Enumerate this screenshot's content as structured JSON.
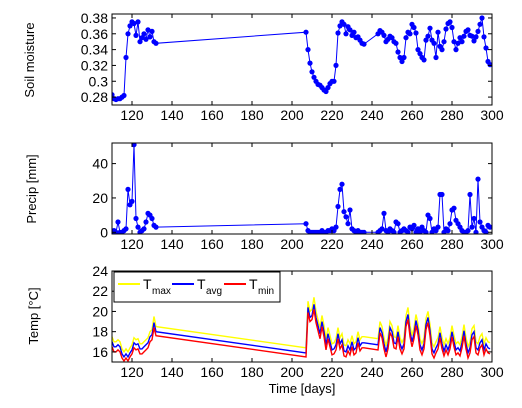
{
  "xlabel": "Time [days]",
  "chart_data": [
    {
      "type": "line",
      "ylabel": "Soil moisture",
      "xlim": [
        110,
        300
      ],
      "ylim": [
        0.27,
        0.385
      ],
      "xticks": [
        120,
        140,
        160,
        180,
        200,
        220,
        240,
        260,
        280,
        300
      ],
      "yticks": [
        0.28,
        0.3,
        0.32,
        0.34,
        0.36,
        0.38
      ],
      "ytick_labels": [
        "0.28",
        "0.3",
        "0.32",
        "0.34",
        "0.36",
        "0.38"
      ],
      "series": [
        {
          "color": "#0000ff",
          "markers": true,
          "x": [
            110,
            111,
            112,
            113,
            114,
            115,
            116,
            117,
            118,
            119,
            120,
            121,
            122,
            123,
            124,
            125,
            126,
            127,
            128,
            129,
            130,
            131,
            132,
            207,
            208,
            209,
            210,
            211,
            212,
            213,
            214,
            215,
            216,
            217,
            218,
            219,
            220,
            221,
            222,
            223,
            224,
            225,
            226,
            227,
            228,
            229,
            230,
            231,
            232,
            233,
            234,
            235,
            236,
            243,
            244,
            245,
            246,
            247,
            248,
            249,
            250,
            251,
            252,
            253,
            254,
            255,
            256,
            257,
            258,
            259,
            260,
            261,
            262,
            263,
            264,
            265,
            266,
            267,
            268,
            269,
            270,
            271,
            272,
            273,
            274,
            275,
            276,
            277,
            278,
            279,
            280,
            281,
            282,
            283,
            284,
            285,
            286,
            287,
            288,
            289,
            290,
            291,
            292,
            293,
            294,
            295,
            296,
            297,
            298,
            299
          ],
          "y": [
            0.283,
            0.278,
            0.277,
            0.278,
            0.278,
            0.28,
            0.282,
            0.33,
            0.36,
            0.37,
            0.375,
            0.373,
            0.358,
            0.375,
            0.35,
            0.355,
            0.36,
            0.353,
            0.365,
            0.356,
            0.363,
            0.35,
            0.348,
            0.362,
            0.34,
            0.323,
            0.312,
            0.305,
            0.3,
            0.296,
            0.295,
            0.292,
            0.289,
            0.287,
            0.292,
            0.297,
            0.3,
            0.3,
            0.32,
            0.361,
            0.37,
            0.375,
            0.372,
            0.36,
            0.369,
            0.365,
            0.358,
            0.362,
            0.355,
            0.356,
            0.352,
            0.348,
            0.347,
            0.36,
            0.364,
            0.362,
            0.358,
            0.35,
            0.353,
            0.357,
            0.355,
            0.35,
            0.348,
            0.337,
            0.33,
            0.325,
            0.33,
            0.355,
            0.362,
            0.36,
            0.372,
            0.368,
            0.361,
            0.34,
            0.335,
            0.33,
            0.327,
            0.352,
            0.357,
            0.367,
            0.352,
            0.348,
            0.33,
            0.362,
            0.344,
            0.34,
            0.35,
            0.366,
            0.373,
            0.375,
            0.368,
            0.35,
            0.34,
            0.348,
            0.355,
            0.35,
            0.357,
            0.363,
            0.365,
            0.358,
            0.357,
            0.351,
            0.356,
            0.363,
            0.372,
            0.38,
            0.356,
            0.342,
            0.325,
            0.321
          ],
          "name": ""
        }
      ],
      "xlabel": ""
    },
    {
      "type": "line",
      "ylabel": "Precip [mm]",
      "xlim": [
        110,
        300
      ],
      "ylim": [
        -1,
        52
      ],
      "xticks": [
        120,
        140,
        160,
        180,
        200,
        220,
        240,
        260,
        280,
        300
      ],
      "yticks": [
        0,
        20,
        40
      ],
      "ytick_labels": [
        "0",
        "20",
        "40"
      ],
      "series": [
        {
          "color": "#0000ff",
          "markers": true,
          "x": [
            110,
            111,
            112,
            113,
            114,
            115,
            116,
            117,
            118,
            119,
            120,
            121,
            122,
            123,
            124,
            125,
            126,
            127,
            128,
            129,
            130,
            131,
            132,
            207,
            208,
            209,
            210,
            211,
            212,
            213,
            214,
            215,
            216,
            217,
            218,
            219,
            220,
            221,
            222,
            223,
            224,
            225,
            226,
            227,
            228,
            229,
            230,
            231,
            232,
            233,
            234,
            235,
            236,
            243,
            244,
            245,
            246,
            247,
            248,
            249,
            250,
            251,
            252,
            253,
            254,
            255,
            256,
            257,
            258,
            259,
            260,
            261,
            262,
            263,
            264,
            265,
            266,
            267,
            268,
            269,
            270,
            271,
            272,
            273,
            274,
            275,
            276,
            277,
            278,
            279,
            280,
            281,
            282,
            283,
            284,
            285,
            286,
            287,
            288,
            289,
            290,
            291,
            292,
            293,
            294,
            295,
            296,
            297,
            298,
            299
          ],
          "y": [
            0,
            1,
            0,
            6,
            0,
            0,
            1,
            2,
            25,
            16,
            18,
            51,
            8,
            3,
            0,
            1,
            2,
            6,
            11,
            10,
            8,
            4,
            3,
            5,
            1,
            0,
            0,
            0,
            0,
            0,
            0,
            1,
            0,
            0,
            1,
            1,
            2,
            1,
            3,
            15,
            25,
            28,
            12,
            9,
            5,
            13,
            2,
            1,
            0,
            1,
            0,
            0,
            0,
            0,
            1,
            2,
            11,
            1,
            0,
            2,
            1,
            0,
            6,
            5,
            0,
            1,
            2,
            1,
            0,
            3,
            2,
            4,
            0,
            2,
            0,
            3,
            1,
            0,
            10,
            8,
            0,
            2,
            1,
            3,
            22,
            22,
            0,
            2,
            1,
            5,
            13,
            14,
            7,
            5,
            3,
            1,
            0,
            0,
            1,
            22,
            3,
            8,
            0,
            31,
            6,
            3,
            1,
            0,
            4,
            3
          ],
          "name": ""
        }
      ],
      "xlabel": ""
    },
    {
      "type": "line",
      "ylabel": "Temp [°C]",
      "xlim": [
        110,
        300
      ],
      "ylim": [
        15,
        24
      ],
      "xticks": [
        120,
        140,
        160,
        180,
        200,
        220,
        240,
        260,
        280,
        300
      ],
      "yticks": [
        16,
        18,
        20,
        22,
        24
      ],
      "ytick_labels": [
        "16",
        "18",
        "20",
        "22",
        "24"
      ],
      "legend": {
        "position": "top-left",
        "entries": [
          {
            "name": "T",
            "sub": "max",
            "color": "#ffff00"
          },
          {
            "name": "T",
            "sub": "avg",
            "color": "#0000ff"
          },
          {
            "name": "T",
            "sub": "min",
            "color": "#ff0000"
          }
        ]
      },
      "x": [
        110,
        111,
        112,
        113,
        114,
        115,
        116,
        117,
        118,
        119,
        120,
        121,
        122,
        123,
        124,
        125,
        126,
        127,
        128,
        129,
        130,
        131,
        132,
        207,
        208,
        209,
        210,
        211,
        212,
        213,
        214,
        215,
        216,
        217,
        218,
        219,
        220,
        221,
        222,
        223,
        224,
        225,
        226,
        227,
        228,
        229,
        230,
        231,
        232,
        233,
        234,
        235,
        236,
        243,
        244,
        245,
        246,
        247,
        248,
        249,
        250,
        251,
        252,
        253,
        254,
        255,
        256,
        257,
        258,
        259,
        260,
        261,
        262,
        263,
        264,
        265,
        266,
        267,
        268,
        269,
        270,
        271,
        272,
        273,
        274,
        275,
        276,
        277,
        278,
        279,
        280,
        281,
        282,
        283,
        284,
        285,
        286,
        287,
        288,
        289,
        290,
        291,
        292,
        293,
        294,
        295,
        296,
        297,
        298,
        299
      ],
      "series": [
        {
          "color": "#ffff00",
          "y": [
            17.5,
            17.0,
            17.0,
            17.2,
            17.0,
            16.3,
            16.0,
            16.3,
            16.0,
            16.4,
            16.7,
            17.4,
            17.2,
            17.3,
            16.8,
            16.8,
            17.0,
            17.2,
            17.4,
            18.0,
            18.2,
            19.5,
            18.5,
            16.4,
            21.0,
            20.0,
            20.2,
            21.4,
            20.0,
            19.2,
            18.4,
            19.6,
            18.6,
            17.3,
            18.4,
            17.6,
            16.8,
            16.9,
            17.3,
            18.4,
            17.4,
            17.8,
            16.7,
            16.6,
            17.2,
            16.8,
            17.6,
            16.8,
            17.0,
            18.0,
            17.2,
            17.5,
            17.5,
            17.3,
            19.0,
            18.5,
            17.4,
            16.6,
            17.4,
            19.0,
            18.6,
            17.5,
            17.4,
            18.6,
            17.4,
            16.9,
            17.4,
            19.6,
            20.4,
            18.6,
            17.6,
            18.4,
            19.7,
            18.8,
            17.3,
            16.8,
            17.4,
            19.3,
            20.0,
            18.7,
            16.9,
            16.5,
            17.0,
            17.4,
            18.5,
            17.4,
            16.7,
            17.3,
            16.8,
            17.4,
            18.6,
            17.6,
            16.8,
            17.0,
            16.7,
            17.5,
            18.7,
            17.4,
            16.5,
            17.0,
            18.3,
            18.6,
            17.0,
            16.8,
            17.5,
            17.8,
            16.8,
            17.4,
            17.0,
            16.9
          ],
          "name": ""
        },
        {
          "color": "#0000ff",
          "y": [
            17.0,
            16.5,
            16.5,
            16.7,
            16.5,
            15.8,
            15.5,
            15.8,
            15.5,
            15.9,
            16.2,
            16.9,
            16.7,
            16.8,
            16.3,
            16.3,
            16.5,
            16.7,
            16.9,
            17.5,
            17.7,
            18.9,
            18.0,
            15.9,
            20.4,
            19.4,
            19.6,
            20.7,
            19.4,
            18.6,
            17.8,
            19.0,
            18.0,
            16.7,
            17.8,
            17.0,
            16.2,
            16.3,
            16.7,
            17.8,
            16.8,
            17.2,
            16.1,
            16.0,
            16.6,
            16.2,
            17.0,
            16.2,
            16.4,
            17.4,
            16.6,
            16.9,
            16.9,
            16.7,
            18.4,
            17.9,
            16.8,
            16.0,
            16.8,
            18.4,
            18.0,
            16.9,
            16.8,
            18.0,
            16.8,
            16.3,
            16.8,
            19.0,
            19.7,
            18.0,
            17.0,
            17.8,
            19.1,
            18.2,
            16.7,
            16.2,
            16.8,
            18.7,
            19.4,
            18.1,
            16.3,
            15.9,
            16.4,
            16.8,
            17.9,
            16.8,
            16.1,
            16.7,
            16.2,
            16.8,
            18.0,
            17.0,
            16.2,
            16.4,
            16.1,
            16.9,
            18.1,
            16.8,
            15.9,
            16.4,
            17.7,
            18.0,
            16.4,
            16.2,
            16.9,
            17.2,
            16.2,
            16.8,
            16.4,
            16.3
          ],
          "name": ""
        },
        {
          "color": "#ff0000",
          "y": [
            16.5,
            16.0,
            16.0,
            16.2,
            16.0,
            15.4,
            15.1,
            15.4,
            15.1,
            15.5,
            15.8,
            16.4,
            16.2,
            16.3,
            15.8,
            15.8,
            16.0,
            16.2,
            16.4,
            17.0,
            17.2,
            18.4,
            17.6,
            15.5,
            19.9,
            19.0,
            19.2,
            20.2,
            18.9,
            18.1,
            17.3,
            18.5,
            17.5,
            16.2,
            17.3,
            16.5,
            15.7,
            15.8,
            16.2,
            17.3,
            16.3,
            16.7,
            15.6,
            15.5,
            16.1,
            15.7,
            16.5,
            15.7,
            15.9,
            16.9,
            16.1,
            16.4,
            16.4,
            16.2,
            17.9,
            17.4,
            16.3,
            15.5,
            16.3,
            17.9,
            17.5,
            16.4,
            16.3,
            17.5,
            16.3,
            15.8,
            16.3,
            18.5,
            19.2,
            17.5,
            16.5,
            17.3,
            18.6,
            17.7,
            16.2,
            15.7,
            16.3,
            18.2,
            18.9,
            17.6,
            15.8,
            15.4,
            15.9,
            16.3,
            17.4,
            16.3,
            15.6,
            16.2,
            15.7,
            16.3,
            17.5,
            16.5,
            15.7,
            15.9,
            15.6,
            16.4,
            17.6,
            16.3,
            15.4,
            15.9,
            17.2,
            17.5,
            15.9,
            15.7,
            16.4,
            16.7,
            15.7,
            16.3,
            15.9,
            15.8
          ],
          "name": ""
        }
      ],
      "xlabel": ""
    }
  ]
}
